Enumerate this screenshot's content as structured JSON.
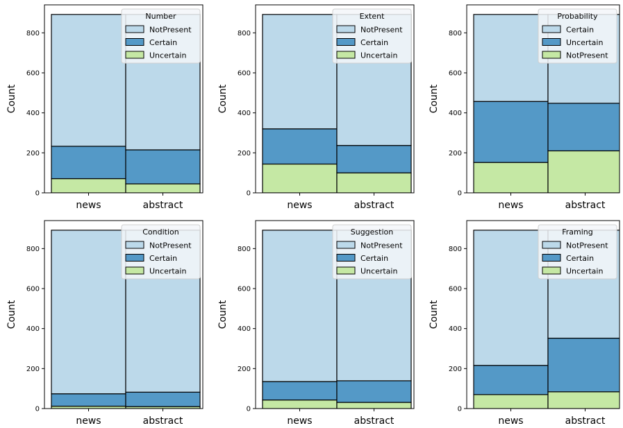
{
  "colors": {
    "light_blue": "#bcd9ea",
    "mid_blue": "#5499c7",
    "light_green": "#c5e8a4",
    "legend_bg": "#f3f6f9"
  },
  "chart_data": [
    {
      "type": "bar",
      "stacked": true,
      "legend_title": "Number",
      "legend_placement": "top-right",
      "categories": [
        "news",
        "abstract"
      ],
      "ylabel": "Count",
      "ylim": [
        0,
        940
      ],
      "yticks": [
        0,
        200,
        400,
        600,
        800
      ],
      "series": [
        {
          "name": "NotPresent",
          "color": "#bcd9ea",
          "values": [
            659,
            677
          ]
        },
        {
          "name": "Certain",
          "color": "#5499c7",
          "values": [
            162,
            170
          ]
        },
        {
          "name": "Uncertain",
          "color": "#c5e8a4",
          "values": [
            71,
            45
          ]
        }
      ],
      "stack_order": [
        "Uncertain",
        "Certain",
        "NotPresent"
      ]
    },
    {
      "type": "bar",
      "stacked": true,
      "legend_title": "Extent",
      "legend_placement": "top-right",
      "categories": [
        "news",
        "abstract"
      ],
      "ylabel": "Count",
      "ylim": [
        0,
        940
      ],
      "yticks": [
        0,
        200,
        400,
        600,
        800
      ],
      "series": [
        {
          "name": "NotPresent",
          "color": "#bcd9ea",
          "values": [
            572,
            655
          ]
        },
        {
          "name": "Certain",
          "color": "#5499c7",
          "values": [
            176,
            137
          ]
        },
        {
          "name": "Uncertain",
          "color": "#c5e8a4",
          "values": [
            144,
            100
          ]
        }
      ],
      "stack_order": [
        "Uncertain",
        "Certain",
        "NotPresent"
      ]
    },
    {
      "type": "bar",
      "stacked": true,
      "legend_title": "Probability",
      "legend_placement": "top-right",
      "categories": [
        "news",
        "abstract"
      ],
      "ylabel": "Count",
      "ylim": [
        0,
        940
      ],
      "yticks": [
        0,
        200,
        400,
        600,
        800
      ],
      "series": [
        {
          "name": "Certain",
          "color": "#bcd9ea",
          "values": [
            435,
            444
          ]
        },
        {
          "name": "Uncertain",
          "color": "#5499c7",
          "values": [
            305,
            238
          ]
        },
        {
          "name": "NotPresent",
          "color": "#c5e8a4",
          "values": [
            152,
            210
          ]
        }
      ],
      "stack_order": [
        "NotPresent",
        "Uncertain",
        "Certain"
      ]
    },
    {
      "type": "bar",
      "stacked": true,
      "legend_title": "Condition",
      "legend_placement": "top-right",
      "categories": [
        "news",
        "abstract"
      ],
      "ylabel": "Count",
      "ylim": [
        0,
        940
      ],
      "yticks": [
        0,
        200,
        400,
        600,
        800
      ],
      "series": [
        {
          "name": "NotPresent",
          "color": "#bcd9ea",
          "values": [
            818,
            810
          ]
        },
        {
          "name": "Certain",
          "color": "#5499c7",
          "values": [
            62,
            72
          ]
        },
        {
          "name": "Uncertain",
          "color": "#c5e8a4",
          "values": [
            12,
            10
          ]
        }
      ],
      "stack_order": [
        "Uncertain",
        "Certain",
        "NotPresent"
      ]
    },
    {
      "type": "bar",
      "stacked": true,
      "legend_title": "Suggestion",
      "legend_placement": "top-right",
      "categories": [
        "news",
        "abstract"
      ],
      "ylabel": "Count",
      "ylim": [
        0,
        940
      ],
      "yticks": [
        0,
        200,
        400,
        600,
        800
      ],
      "series": [
        {
          "name": "NotPresent",
          "color": "#bcd9ea",
          "values": [
            757,
            753
          ]
        },
        {
          "name": "Certain",
          "color": "#5499c7",
          "values": [
            92,
            108
          ]
        },
        {
          "name": "Uncertain",
          "color": "#c5e8a4",
          "values": [
            43,
            31
          ]
        }
      ],
      "stack_order": [
        "Uncertain",
        "Certain",
        "NotPresent"
      ]
    },
    {
      "type": "bar",
      "stacked": true,
      "legend_title": "Framing",
      "legend_placement": "top-right",
      "categories": [
        "news",
        "abstract"
      ],
      "ylabel": "Count",
      "ylim": [
        0,
        940
      ],
      "yticks": [
        0,
        200,
        400,
        600,
        800
      ],
      "series": [
        {
          "name": "NotPresent",
          "color": "#bcd9ea",
          "values": [
            676,
            540
          ]
        },
        {
          "name": "Certain",
          "color": "#5499c7",
          "values": [
            146,
            268
          ]
        },
        {
          "name": "Uncertain",
          "color": "#c5e8a4",
          "values": [
            70,
            84
          ]
        }
      ],
      "stack_order": [
        "Uncertain",
        "Certain",
        "NotPresent"
      ]
    }
  ]
}
